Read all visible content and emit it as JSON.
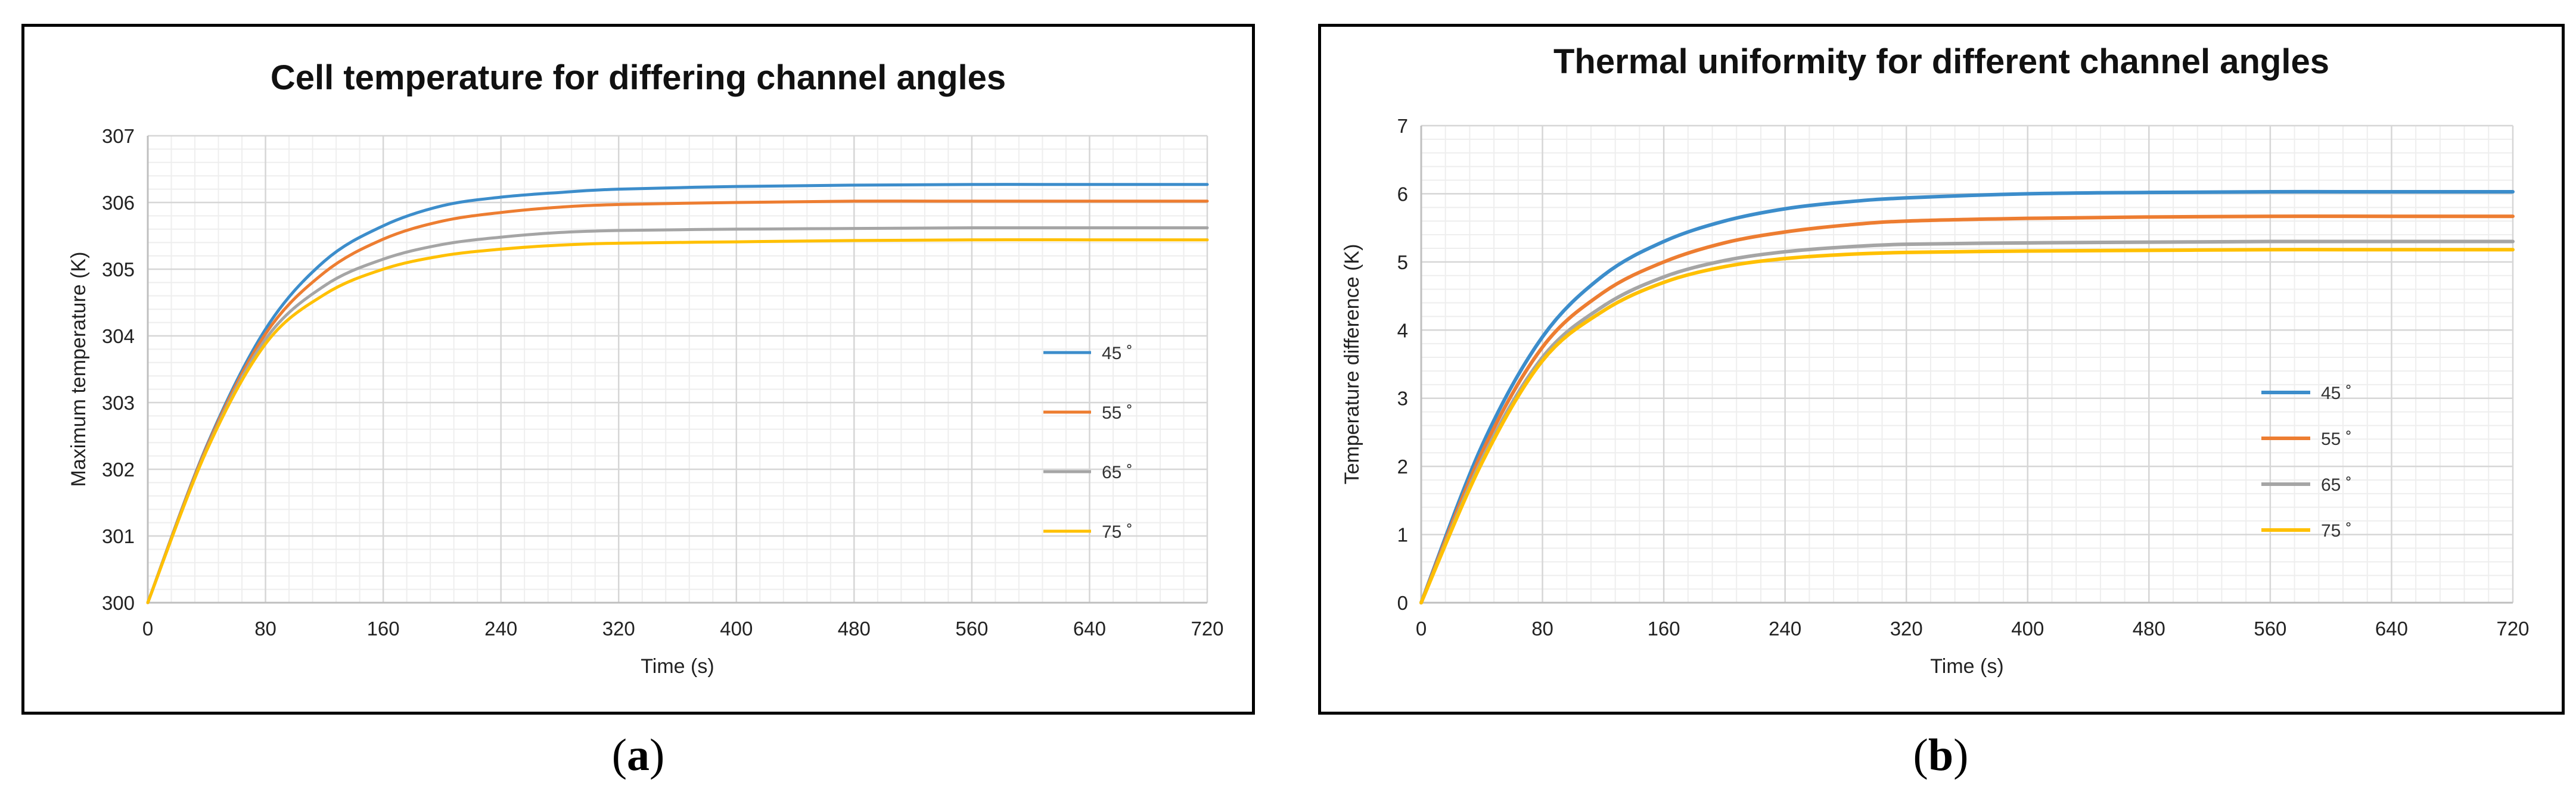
{
  "chart_data": [
    {
      "type": "line",
      "panel": "a",
      "title": "Cell temperature for differing channel angles",
      "xlabel": "Time (s)",
      "ylabel": "Maximum temperature (K)",
      "xlim": [
        0,
        720
      ],
      "ylim": [
        300,
        307
      ],
      "xticks": [
        0,
        80,
        160,
        240,
        320,
        400,
        480,
        560,
        640,
        720
      ],
      "yticks": [
        300,
        301,
        302,
        303,
        304,
        305,
        306,
        307
      ],
      "grid": true,
      "legend": "right",
      "x": [
        0,
        40,
        80,
        120,
        160,
        200,
        240,
        280,
        320,
        400,
        480,
        560,
        640,
        720
      ],
      "series": [
        {
          "name": "45 ˚",
          "color": "#3C8DCB",
          "values": [
            300,
            302.35,
            304.1,
            305.12,
            305.65,
            305.95,
            306.08,
            306.15,
            306.2,
            306.24,
            306.26,
            306.27,
            306.27,
            306.27
          ]
        },
        {
          "name": "55 ˚",
          "color": "#ED7D31",
          "values": [
            300,
            302.33,
            304.03,
            304.95,
            305.45,
            305.72,
            305.85,
            305.93,
            305.97,
            306.0,
            306.02,
            306.02,
            306.02,
            306.02
          ]
        },
        {
          "name": "65 ˚",
          "color": "#A5A5A5",
          "values": [
            300,
            302.3,
            303.95,
            304.75,
            305.15,
            305.37,
            305.48,
            305.55,
            305.58,
            305.6,
            305.61,
            305.62,
            305.62,
            305.62
          ]
        },
        {
          "name": "75 ˚",
          "color": "#FFC000",
          "values": [
            300,
            302.28,
            303.88,
            304.62,
            305.0,
            305.2,
            305.3,
            305.36,
            305.39,
            305.41,
            305.43,
            305.44,
            305.44,
            305.44
          ]
        }
      ]
    },
    {
      "type": "line",
      "panel": "b",
      "title": "Thermal uniformity for different channel angles",
      "xlabel": "Time (s)",
      "ylabel": "Temperature difference (K)",
      "xlim": [
        0,
        720
      ],
      "ylim": [
        0,
        7
      ],
      "xticks": [
        0,
        80,
        160,
        240,
        320,
        400,
        480,
        560,
        640,
        720
      ],
      "yticks": [
        0,
        1,
        2,
        3,
        4,
        5,
        6,
        7
      ],
      "grid": true,
      "legend": "center-right",
      "x": [
        0,
        40,
        80,
        120,
        160,
        200,
        240,
        280,
        320,
        400,
        480,
        560,
        640,
        720
      ],
      "series": [
        {
          "name": "45 ˚",
          "color": "#3C8DCB",
          "values": [
            0,
            2.3,
            3.9,
            4.8,
            5.3,
            5.6,
            5.78,
            5.88,
            5.94,
            6.0,
            6.02,
            6.03,
            6.03,
            6.03
          ]
        },
        {
          "name": "55 ˚",
          "color": "#ED7D31",
          "values": [
            0,
            2.2,
            3.75,
            4.55,
            5.0,
            5.28,
            5.44,
            5.54,
            5.6,
            5.64,
            5.66,
            5.67,
            5.67,
            5.67
          ]
        },
        {
          "name": "65 ˚",
          "color": "#A5A5A5",
          "values": [
            0,
            2.1,
            3.6,
            4.35,
            4.78,
            5.02,
            5.15,
            5.22,
            5.26,
            5.28,
            5.29,
            5.3,
            5.3,
            5.3
          ]
        },
        {
          "name": "75 ˚",
          "color": "#FFC000",
          "values": [
            0,
            2.05,
            3.55,
            4.28,
            4.7,
            4.93,
            5.05,
            5.11,
            5.14,
            5.16,
            5.17,
            5.18,
            5.18,
            5.18
          ]
        }
      ]
    }
  ],
  "captions": {
    "a": "a",
    "b": "b"
  }
}
